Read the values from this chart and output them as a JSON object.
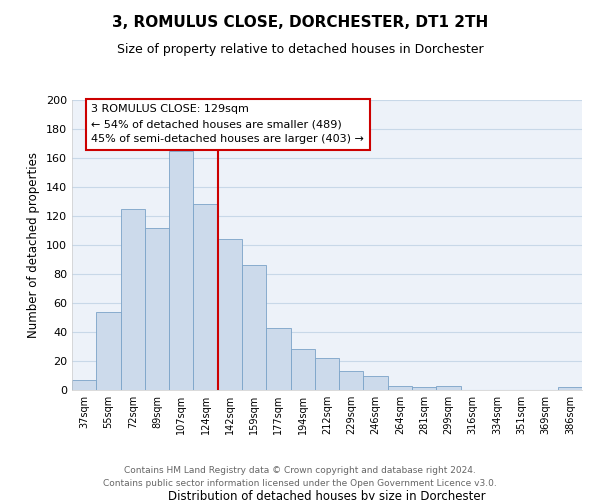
{
  "title": "3, ROMULUS CLOSE, DORCHESTER, DT1 2TH",
  "subtitle": "Size of property relative to detached houses in Dorchester",
  "xlabel": "Distribution of detached houses by size in Dorchester",
  "ylabel": "Number of detached properties",
  "bin_labels": [
    "37sqm",
    "55sqm",
    "72sqm",
    "89sqm",
    "107sqm",
    "124sqm",
    "142sqm",
    "159sqm",
    "177sqm",
    "194sqm",
    "212sqm",
    "229sqm",
    "246sqm",
    "264sqm",
    "281sqm",
    "299sqm",
    "316sqm",
    "334sqm",
    "351sqm",
    "369sqm",
    "386sqm"
  ],
  "bar_values": [
    7,
    54,
    125,
    112,
    165,
    128,
    104,
    86,
    43,
    28,
    22,
    13,
    10,
    3,
    2,
    3,
    0,
    0,
    0,
    0,
    2
  ],
  "bar_color": "#ccdaeb",
  "bar_edge_color": "#7ba3c8",
  "highlight_line_color": "#cc0000",
  "annotation_text": "3 ROMULUS CLOSE: 129sqm\n← 54% of detached houses are smaller (489)\n45% of semi-detached houses are larger (403) →",
  "annotation_box_color": "white",
  "annotation_box_edge": "#cc0000",
  "ylim": [
    0,
    200
  ],
  "yticks": [
    0,
    20,
    40,
    60,
    80,
    100,
    120,
    140,
    160,
    180,
    200
  ],
  "footnote": "Contains HM Land Registry data © Crown copyright and database right 2024.\nContains public sector information licensed under the Open Government Licence v3.0.",
  "grid_color": "#c8d8e8",
  "bg_color": "#edf2f9"
}
